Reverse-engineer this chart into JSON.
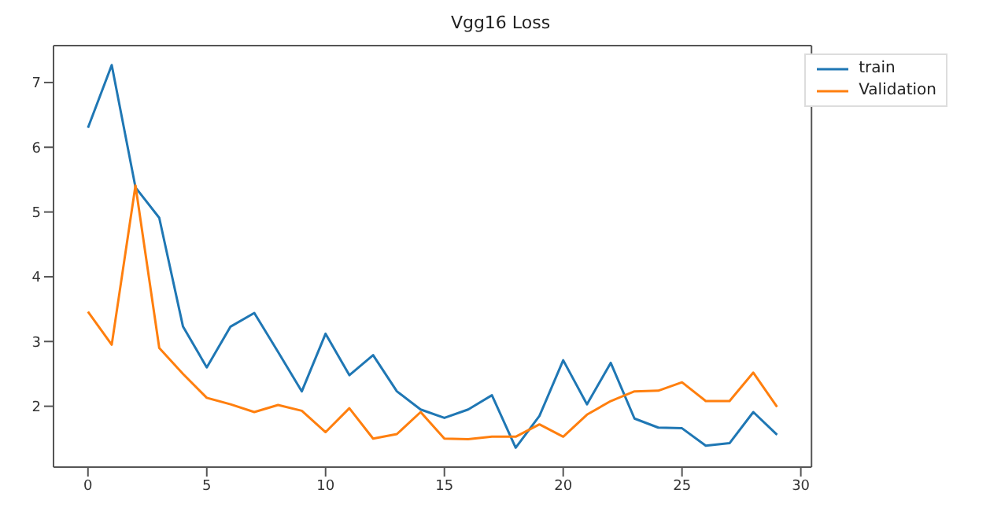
{
  "chart_data": {
    "type": "line",
    "title": "Vgg16 Loss",
    "x": [
      0,
      1,
      2,
      3,
      4,
      5,
      6,
      7,
      8,
      9,
      10,
      11,
      12,
      13,
      14,
      15,
      16,
      17,
      18,
      19,
      20,
      21,
      22,
      23,
      24,
      25,
      26,
      27,
      28,
      29
    ],
    "series": [
      {
        "name": "train",
        "color": "#1f77b4",
        "values": [
          6.3,
          7.27,
          5.38,
          4.91,
          3.23,
          2.6,
          3.23,
          3.44,
          2.84,
          2.23,
          3.12,
          2.48,
          2.79,
          2.23,
          1.95,
          1.82,
          1.95,
          2.17,
          1.36,
          1.85,
          2.71,
          2.03,
          2.67,
          1.81,
          1.67,
          1.66,
          1.39,
          1.43,
          1.91,
          1.56
        ]
      },
      {
        "name": "Validation",
        "color": "#ff7f0e",
        "values": [
          3.46,
          2.95,
          5.41,
          2.9,
          2.5,
          2.13,
          2.03,
          1.91,
          2.02,
          1.93,
          1.6,
          1.97,
          1.5,
          1.57,
          1.91,
          1.5,
          1.49,
          1.53,
          1.53,
          1.72,
          1.53,
          1.87,
          2.08,
          2.23,
          2.24,
          2.37,
          2.08,
          2.08,
          2.52,
          1.99
        ]
      }
    ],
    "xlim": [
      -1.45,
      30.45
    ],
    "xticks": [
      0,
      5,
      10,
      15,
      20,
      25,
      30
    ],
    "ylim": [
      1.06,
      7.57
    ],
    "yticks": [
      2,
      3,
      4,
      5,
      6,
      7
    ],
    "grid": false,
    "legend": "top right",
    "marker": "none",
    "line_style": "solid"
  }
}
